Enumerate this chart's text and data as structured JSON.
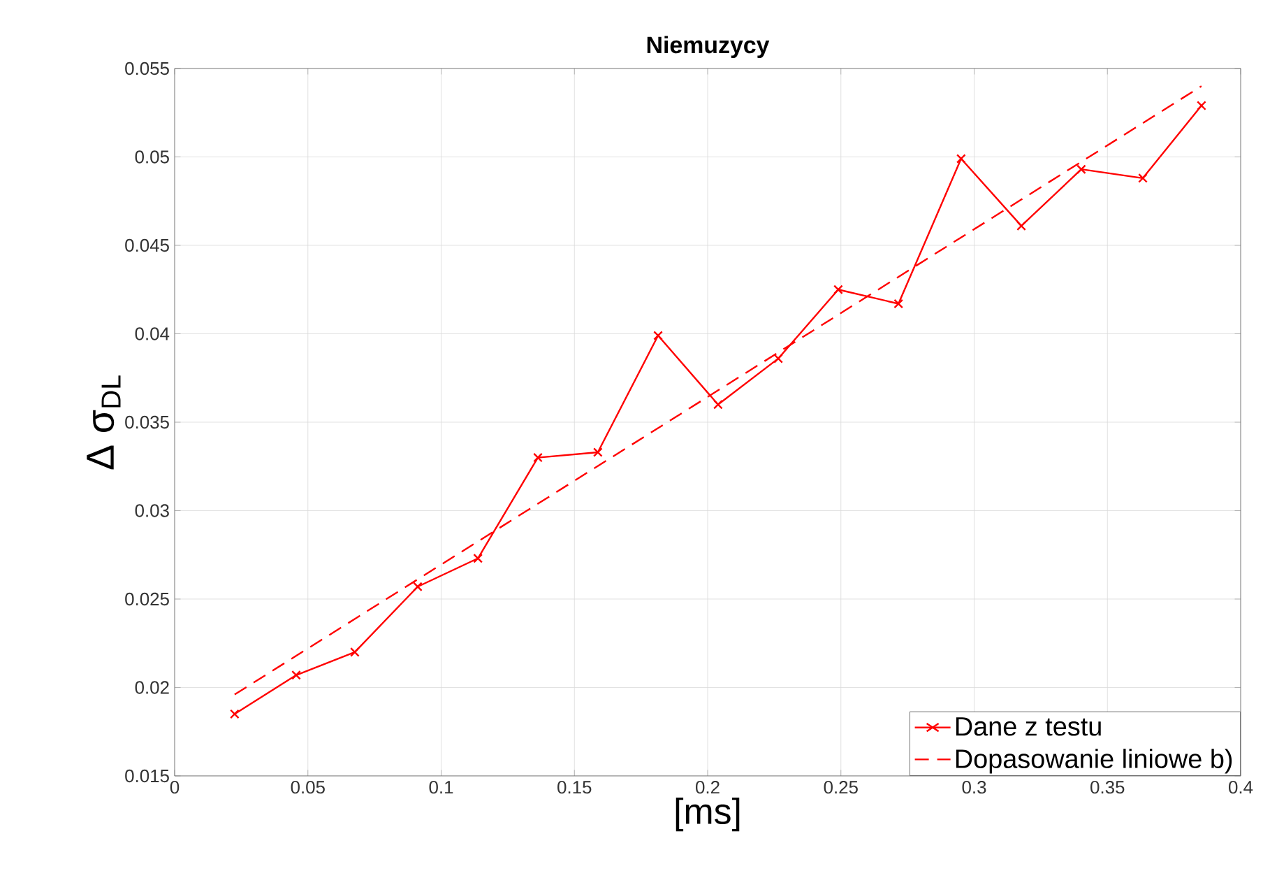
{
  "chart_data": {
    "type": "line",
    "title": "**Niemuzycy**",
    "xlabel": "[ms]",
    "ylabel": "Δ σ$_{DL}$",
    "xlim": [
      0,
      0.4
    ],
    "xticks": [
      0,
      0.05,
      0.1,
      0.15,
      0.2,
      0.25,
      0.3,
      0.35,
      0.4
    ],
    "ylim": [
      0.015,
      0.055
    ],
    "yticks": [
      0.015,
      0.02,
      0.025,
      0.03,
      0.035,
      0.04,
      0.045,
      0.05,
      0.055
    ],
    "grid": true,
    "legend": "bottom right",
    "series": [
      {
        "name": "Dane z testu",
        "color": "#ff0000",
        "marker": "cross",
        "line_style": "solid",
        "x": [
          0.0225,
          0.0456,
          0.0676,
          0.0912,
          0.1138,
          0.1363,
          0.1588,
          0.1814,
          0.2039,
          0.2265,
          0.249,
          0.2716,
          0.2951,
          0.3177,
          0.3402,
          0.3633,
          0.3853
        ],
        "values": [
          0.0185,
          0.0207,
          0.022,
          0.0257,
          0.0273,
          0.033,
          0.0333,
          0.0399,
          0.036,
          0.0386,
          0.0425,
          0.0417,
          0.0499,
          0.0461,
          0.0493,
          0.0488,
          0.0529
        ]
      },
      {
        "name": "Dopasowanie liniowe b)",
        "color": "#ff0000",
        "marker": "none",
        "line_style": "dashed",
        "x": [
          0.0225,
          0.3853
        ],
        "values": [
          0.0196,
          0.054
        ]
      }
    ]
  }
}
